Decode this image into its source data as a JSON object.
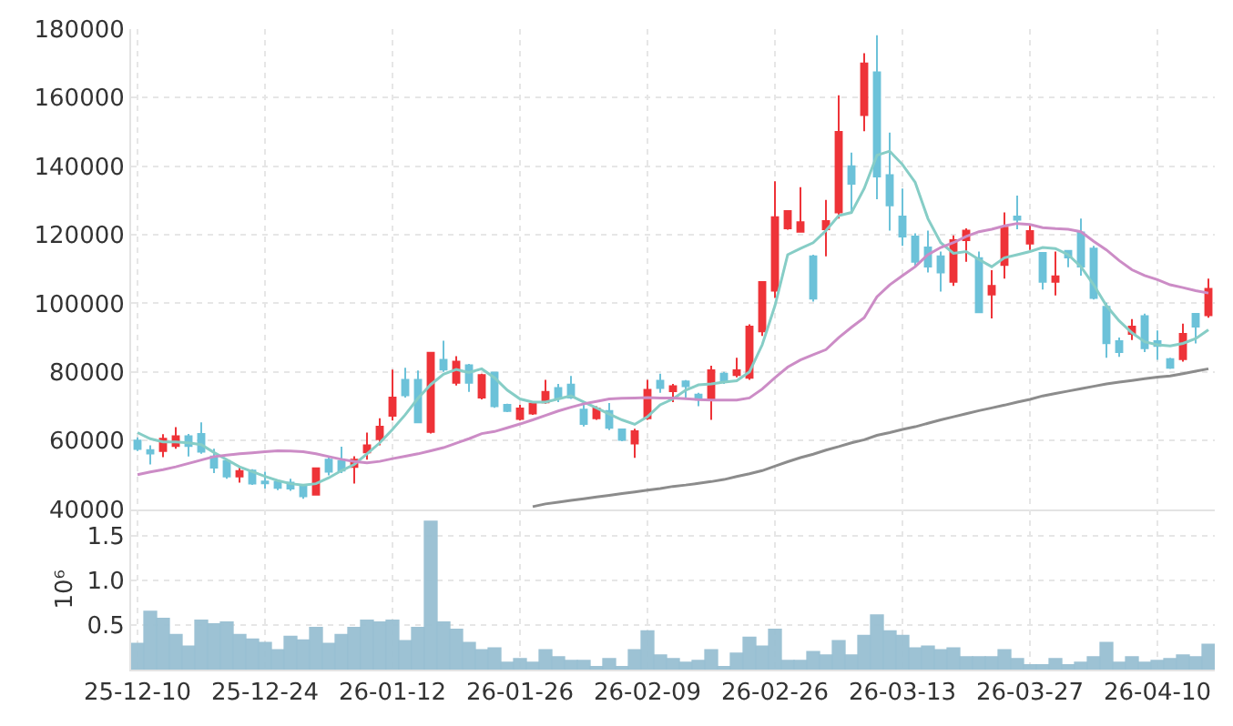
{
  "chart_data": [
    {
      "type": "candlestick",
      "categories": [
        "25-12-10",
        null,
        null,
        null,
        null,
        null,
        null,
        null,
        null,
        null,
        "25-12-24",
        null,
        null,
        null,
        null,
        null,
        null,
        null,
        null,
        null,
        "26-01-12",
        null,
        null,
        null,
        null,
        null,
        null,
        null,
        null,
        null,
        "26-01-26",
        null,
        null,
        null,
        null,
        null,
        null,
        null,
        null,
        null,
        "26-02-09",
        null,
        null,
        null,
        null,
        null,
        null,
        null,
        null,
        null,
        "26-02-26",
        null,
        null,
        null,
        null,
        null,
        null,
        null,
        null,
        null,
        "26-03-13",
        null,
        null,
        null,
        null,
        null,
        null,
        null,
        null,
        null,
        "26-03-27",
        null,
        null,
        null,
        null,
        null,
        null,
        null,
        null,
        null,
        "26-04-10",
        null,
        null,
        null,
        null
      ],
      "ohlc": [
        [
          60000,
          60900,
          56900,
          57500
        ],
        [
          57200,
          58600,
          53000,
          56200
        ],
        [
          56900,
          61800,
          55100,
          60500
        ],
        [
          58400,
          63900,
          57600,
          61200
        ],
        [
          61200,
          61900,
          55300,
          58400
        ],
        [
          61900,
          65300,
          56100,
          56700
        ],
        [
          55300,
          57600,
          50500,
          52100
        ],
        [
          54000,
          54400,
          48800,
          49500
        ],
        [
          49500,
          52300,
          47700,
          51100
        ],
        [
          51200,
          51600,
          47000,
          47400
        ],
        [
          48000,
          50900,
          46000,
          47500
        ],
        [
          47900,
          48600,
          45500,
          46200
        ],
        [
          47700,
          48800,
          45300,
          46000
        ],
        [
          46900,
          47200,
          43000,
          43700
        ],
        [
          44200,
          52000,
          44000,
          51900
        ],
        [
          54400,
          55100,
          49800,
          50900
        ],
        [
          54000,
          58200,
          50500,
          51200
        ],
        [
          52300,
          55400,
          47400,
          54400
        ],
        [
          56500,
          62300,
          54400,
          58600
        ],
        [
          60400,
          66500,
          58600,
          64000
        ],
        [
          67200,
          80700,
          65800,
          72500
        ],
        [
          77700,
          81200,
          72500,
          73200
        ],
        [
          77700,
          80400,
          65300,
          65300
        ],
        [
          62500,
          85700,
          62000,
          85600
        ],
        [
          83500,
          89100,
          80000,
          80700
        ],
        [
          76800,
          84600,
          76000,
          83000
        ],
        [
          81900,
          82300,
          74200,
          76800
        ],
        [
          72500,
          79500,
          72000,
          79100
        ],
        [
          79800,
          80000,
          69500,
          70000
        ],
        [
          70400,
          70700,
          68300,
          68600
        ],
        [
          66300,
          70400,
          65800,
          69300
        ],
        [
          67900,
          71000,
          67500,
          70700
        ],
        [
          71100,
          77700,
          70700,
          74200
        ],
        [
          75300,
          76500,
          71200,
          72500
        ],
        [
          76300,
          78800,
          72100,
          72500
        ],
        [
          69000,
          71200,
          64100,
          64800
        ],
        [
          66500,
          70000,
          66000,
          69300
        ],
        [
          68600,
          70900,
          63000,
          63700
        ],
        [
          63200,
          63200,
          59800,
          60200
        ],
        [
          59100,
          63400,
          54900,
          62700
        ],
        [
          66500,
          77700,
          66000,
          74800
        ],
        [
          77400,
          79500,
          73900,
          75300
        ],
        [
          74400,
          76500,
          71200,
          75800
        ],
        [
          77200,
          77600,
          72500,
          75800
        ],
        [
          73400,
          73900,
          70000,
          72100
        ],
        [
          72100,
          81800,
          66000,
          80500
        ],
        [
          79500,
          80000,
          76500,
          77000
        ],
        [
          79100,
          84100,
          78400,
          80500
        ],
        [
          78300,
          93900,
          77700,
          93200
        ],
        [
          91800,
          106500,
          90500,
          106200
        ],
        [
          103700,
          135600,
          101600,
          125100
        ],
        [
          121900,
          127200,
          121500,
          126900
        ],
        [
          120900,
          133900,
          120900,
          123700
        ],
        [
          113700,
          114200,
          100500,
          101400
        ],
        [
          121600,
          130200,
          113700,
          124000
        ],
        [
          126500,
          160700,
          124700,
          150000
        ],
        [
          140000,
          144000,
          126500,
          134900
        ],
        [
          154900,
          173000,
          150200,
          170000
        ],
        [
          167400,
          178200,
          130400,
          137000
        ],
        [
          137400,
          149800,
          121200,
          128600
        ],
        [
          125300,
          133500,
          116800,
          119500
        ],
        [
          119500,
          120400,
          110700,
          112100
        ],
        [
          116300,
          121200,
          109000,
          110700
        ],
        [
          113700,
          115100,
          103400,
          109000
        ],
        [
          106300,
          119800,
          105100,
          118400
        ],
        [
          118400,
          121900,
          112100,
          121200
        ],
        [
          113200,
          115100,
          97400,
          97400
        ],
        [
          102600,
          109700,
          95600,
          105100
        ],
        [
          111200,
          126500,
          107200,
          122100
        ],
        [
          125300,
          131400,
          121600,
          124400
        ],
        [
          117400,
          123000,
          115600,
          121100
        ],
        [
          114700,
          114700,
          104000,
          106300
        ],
        [
          106300,
          115100,
          102300,
          107900
        ],
        [
          115300,
          115600,
          110500,
          113400
        ],
        [
          120700,
          124700,
          108100,
          110700
        ],
        [
          116000,
          116800,
          101100,
          101600
        ],
        [
          99000,
          100200,
          84100,
          88400
        ],
        [
          89000,
          90000,
          84400,
          85800
        ],
        [
          91100,
          95400,
          89300,
          93200
        ],
        [
          96300,
          97000,
          85800,
          86900
        ],
        [
          89000,
          92100,
          83500,
          87600
        ],
        [
          83700,
          84100,
          80900,
          81200
        ],
        [
          83700,
          94100,
          83000,
          91100
        ],
        [
          96900,
          97200,
          88300,
          93200
        ],
        [
          96500,
          107200,
          95800,
          104200
        ]
      ],
      "colors": [
        "#6cc2d9",
        "#6cc2d9",
        "#ee3338",
        "#ee3338",
        "#6cc2d9",
        "#6cc2d9",
        "#6cc2d9",
        "#6cc2d9",
        "#ee3338",
        "#6cc2d9",
        "#6cc2d9",
        "#6cc2d9",
        "#6cc2d9",
        "#6cc2d9",
        "#ee3338",
        "#6cc2d9",
        "#6cc2d9",
        "#ee3338",
        "#ee3338",
        "#ee3338",
        "#ee3338",
        "#6cc2d9",
        "#6cc2d9",
        "#ee3338",
        "#6cc2d9",
        "#ee3338",
        "#6cc2d9",
        "#ee3338",
        "#6cc2d9",
        "#6cc2d9",
        "#ee3338",
        "#ee3338",
        "#ee3338",
        "#6cc2d9",
        "#6cc2d9",
        "#6cc2d9",
        "#ee3338",
        "#6cc2d9",
        "#6cc2d9",
        "#ee3338",
        "#ee3338",
        "#6cc2d9",
        "#ee3338",
        "#6cc2d9",
        "#6cc2d9",
        "#ee3338",
        "#6cc2d9",
        "#ee3338",
        "#ee3338",
        "#ee3338",
        "#ee3338",
        "#ee3338",
        "#ee3338",
        "#6cc2d9",
        "#ee3338",
        "#ee3338",
        "#6cc2d9",
        "#ee3338",
        "#6cc2d9",
        "#6cc2d9",
        "#6cc2d9",
        "#6cc2d9",
        "#6cc2d9",
        "#6cc2d9",
        "#ee3338",
        "#ee3338",
        "#6cc2d9",
        "#ee3338",
        "#ee3338",
        "#6cc2d9",
        "#ee3338",
        "#6cc2d9",
        "#ee3338",
        "#6cc2d9",
        "#6cc2d9",
        "#6cc2d9",
        "#6cc2d9",
        "#6cc2d9",
        "#ee3338",
        "#6cc2d9",
        "#6cc2d9",
        "#6cc2d9",
        "#ee3338",
        "#6cc2d9",
        "#ee3338"
      ],
      "series": [
        {
          "type": "line",
          "color": "#86cdc6",
          "values": [
            62300,
            60500,
            59600,
            59600,
            59300,
            58800,
            56500,
            54400,
            52300,
            50900,
            49500,
            48300,
            47400,
            47000,
            47400,
            49100,
            51200,
            53000,
            56100,
            59300,
            63200,
            67500,
            72300,
            76300,
            79300,
            80700,
            79800,
            80900,
            78300,
            74700,
            72100,
            71200,
            71200,
            72100,
            73000,
            71200,
            69500,
            67700,
            66000,
            64700,
            66900,
            70400,
            72100,
            74700,
            76200,
            76500,
            77000,
            77400,
            80000,
            87900,
            99300,
            114200,
            116000,
            117700,
            121200,
            125600,
            126500,
            133500,
            143200,
            144400,
            140500,
            135300,
            124700,
            117700,
            114600,
            115100,
            112800,
            110700,
            113300,
            114200,
            115100,
            116300,
            116000,
            114200,
            110700,
            105400,
            99300,
            94900,
            91400,
            88800,
            87900,
            87600,
            88300,
            89700,
            92300
          ]
        },
        {
          "type": "line",
          "color": "#cc8cc6",
          "values": [
            50000,
            50800,
            51500,
            52300,
            53300,
            54300,
            55300,
            55700,
            56100,
            56400,
            56700,
            57000,
            56900,
            56700,
            56100,
            55300,
            54500,
            53900,
            53500,
            53900,
            54700,
            55400,
            56100,
            57000,
            57900,
            59200,
            60500,
            62000,
            62600,
            63700,
            64800,
            66000,
            67300,
            68600,
            69700,
            70700,
            71400,
            72100,
            72300,
            72400,
            72500,
            72400,
            72400,
            72200,
            71900,
            71800,
            71800,
            71800,
            72400,
            75000,
            78300,
            81400,
            83500,
            85000,
            86500,
            90000,
            93000,
            95800,
            101900,
            105400,
            108100,
            110700,
            114200,
            116300,
            117700,
            119500,
            120900,
            121600,
            122600,
            123300,
            123000,
            122100,
            121800,
            121600,
            120900,
            118100,
            115600,
            112500,
            109800,
            108100,
            106900,
            105400,
            104600,
            103700,
            103000
          ]
        },
        {
          "type": "line",
          "color": "#8c8c8c",
          "values": [
            null,
            null,
            null,
            null,
            null,
            null,
            null,
            null,
            null,
            null,
            null,
            null,
            null,
            null,
            null,
            null,
            null,
            null,
            null,
            null,
            null,
            null,
            null,
            null,
            null,
            null,
            null,
            null,
            null,
            null,
            null,
            40700,
            41500,
            42000,
            42500,
            43000,
            43500,
            44000,
            44500,
            45000,
            45500,
            46000,
            46600,
            47000,
            47500,
            48000,
            48600,
            49500,
            50300,
            51200,
            52500,
            53800,
            55000,
            56000,
            57200,
            58200,
            59300,
            60200,
            61500,
            62300,
            63200,
            64000,
            65000,
            66000,
            66900,
            67800,
            68700,
            69500,
            70300,
            71200,
            72000,
            73000,
            73700,
            74400,
            75100,
            75800,
            76500,
            77000,
            77500,
            78000,
            78500,
            78800,
            79500,
            80200,
            80900
          ]
        }
      ],
      "ylim": [
        40000,
        180000
      ],
      "yticks": [
        40000,
        60000,
        80000,
        100000,
        120000,
        140000,
        160000,
        180000
      ],
      "grid": true,
      "tick_labels": "y"
    },
    {
      "type": "bar",
      "categories": [
        "25-12-10",
        null,
        null,
        null,
        null,
        null,
        null,
        null,
        null,
        null,
        "25-12-24",
        null,
        null,
        null,
        null,
        null,
        null,
        null,
        null,
        null,
        "26-01-12",
        null,
        null,
        null,
        null,
        null,
        null,
        null,
        null,
        null,
        "26-01-26",
        null,
        null,
        null,
        null,
        null,
        null,
        null,
        null,
        null,
        "26-02-09",
        null,
        null,
        null,
        null,
        null,
        null,
        null,
        null,
        null,
        "26-02-26",
        null,
        null,
        null,
        null,
        null,
        null,
        null,
        null,
        null,
        "26-03-13",
        null,
        null,
        null,
        null,
        null,
        null,
        null,
        null,
        null,
        "26-03-27",
        null,
        null,
        null,
        null,
        null,
        null,
        null,
        null,
        null,
        "26-04-10",
        null,
        null,
        null,
        null
      ],
      "values": [
        0.29,
        0.65,
        0.57,
        0.39,
        0.26,
        0.55,
        0.51,
        0.53,
        0.39,
        0.34,
        0.3,
        0.22,
        0.37,
        0.33,
        0.47,
        0.29,
        0.39,
        0.47,
        0.55,
        0.53,
        0.55,
        0.32,
        0.47,
        1.66,
        0.53,
        0.45,
        0.3,
        0.22,
        0.24,
        0.08,
        0.12,
        0.08,
        0.22,
        0.14,
        0.1,
        0.1,
        0.03,
        0.12,
        0.03,
        0.22,
        0.43,
        0.16,
        0.12,
        0.08,
        0.1,
        0.22,
        0.03,
        0.18,
        0.36,
        0.26,
        0.45,
        0.1,
        0.1,
        0.2,
        0.16,
        0.32,
        0.16,
        0.38,
        0.61,
        0.43,
        0.38,
        0.24,
        0.26,
        0.22,
        0.24,
        0.14,
        0.14,
        0.14,
        0.22,
        0.12,
        0.05,
        0.05,
        0.12,
        0.05,
        0.08,
        0.14,
        0.3,
        0.08,
        0.14,
        0.08,
        0.1,
        0.12,
        0.16,
        0.14,
        0.28
      ],
      "color": "#98bfd2",
      "ylabel": "10⁶",
      "ylim": [
        0,
        1.8
      ],
      "yticks": [
        {
          "value": 0.5,
          "label": "0.5"
        },
        {
          "value": 1,
          "label": "1.0"
        },
        {
          "value": 1.5,
          "label": "1.5"
        }
      ],
      "grid": true
    }
  ]
}
